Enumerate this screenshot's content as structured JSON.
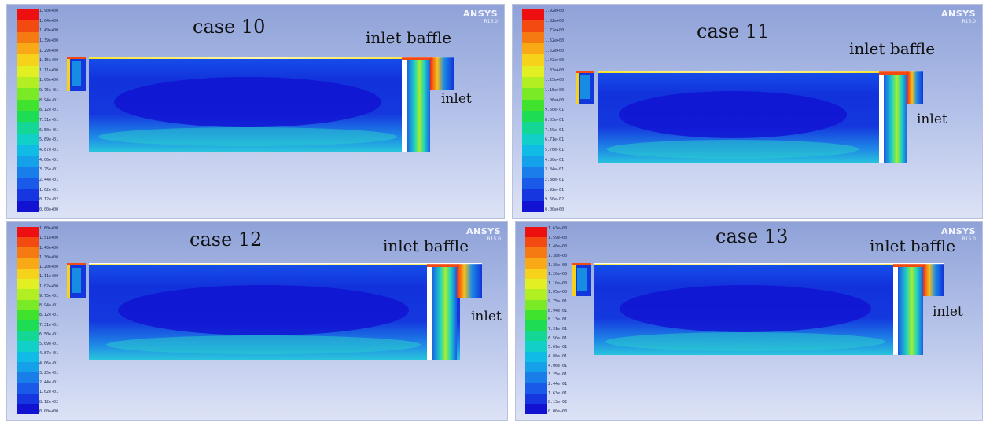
{
  "legend": {
    "colors": [
      "#ee1010",
      "#f24a10",
      "#f57a12",
      "#f9a816",
      "#f7d21b",
      "#e2ef22",
      "#b2ef22",
      "#7ae926",
      "#3fe22c",
      "#1fdc55",
      "#14d795",
      "#10d0c8",
      "#10bce6",
      "#15a0ea",
      "#1a7eea",
      "#1a5ae8",
      "#1636e0",
      "#1212d2"
    ]
  },
  "panels": [
    {
      "id": "case-10",
      "title": "case 10",
      "baffle_label": "inlet baffle",
      "inlet_label": "inlet",
      "logo": "ANSYS",
      "version": "R15.0",
      "ticks": [
        "1.90e+00",
        "1.64e+00",
        "1.49e+00",
        "1.39e+00",
        "1.29e+00",
        "1.15e+00",
        "1.11e+00",
        "1.06e+00",
        "9.75e-01",
        "8.94e-01",
        "8.12e-01",
        "7.31e-01",
        "6.50e-01",
        "5.69e-01",
        "4.87e-01",
        "4.06e-01",
        "3.25e-01",
        "2.44e-01",
        "1.62e-01",
        "8.12e-02",
        "0.00e+00"
      ]
    },
    {
      "id": "case-11",
      "title": "case 11",
      "baffle_label": "inlet baffle",
      "inlet_label": "inlet",
      "logo": "ANSYS",
      "version": "R15.0",
      "ticks": [
        "1.92e+00",
        "1.82e+00",
        "1.72e+00",
        "1.62e+00",
        "1.52e+00",
        "1.42e+00",
        "1.33e+00",
        "1.25e+00",
        "1.15e+00",
        "1.06e+00",
        "9.60e-01",
        "8.63e-01",
        "7.69e-01",
        "6.71e-01",
        "5.76e-01",
        "4.80e-01",
        "3.84e-01",
        "2.88e-01",
        "1.92e-01",
        "9.60e-02",
        "0.00e+00"
      ]
    },
    {
      "id": "case-12",
      "title": "case 12",
      "baffle_label": "inlet baffle",
      "inlet_label": "inlet",
      "logo": "ANSYS",
      "version": "R15.0",
      "ticks": [
        "1.60e+00",
        "1.51e+00",
        "1.40e+00",
        "1.30e+00",
        "1.20e+00",
        "1.11e+00",
        "1.02e+00",
        "9.75e-01",
        "8.94e-01",
        "8.12e-01",
        "7.31e-01",
        "6.50e-01",
        "5.69e-01",
        "4.87e-01",
        "4.06e-01",
        "3.25e-01",
        "2.44e-01",
        "1.62e-01",
        "8.12e-02",
        "0.00e+00"
      ]
    },
    {
      "id": "case-13",
      "title": "case 13",
      "baffle_label": "inlet baffle",
      "inlet_label": "inlet",
      "logo": "ANSYS",
      "version": "R15.0",
      "ticks": [
        "1.63e+00",
        "1.59e+00",
        "1.48e+00",
        "1.38e+00",
        "1.30e+00",
        "1.20e+00",
        "1.10e+00",
        "1.05e+00",
        "9.75e-01",
        "8.94e-01",
        "8.13e-01",
        "7.31e-01",
        "6.50e-01",
        "5.69e-01",
        "4.88e-01",
        "4.06e-01",
        "3.25e-01",
        "2.44e-01",
        "1.63e-01",
        "8.13e-02",
        "0.00e+00"
      ]
    }
  ]
}
